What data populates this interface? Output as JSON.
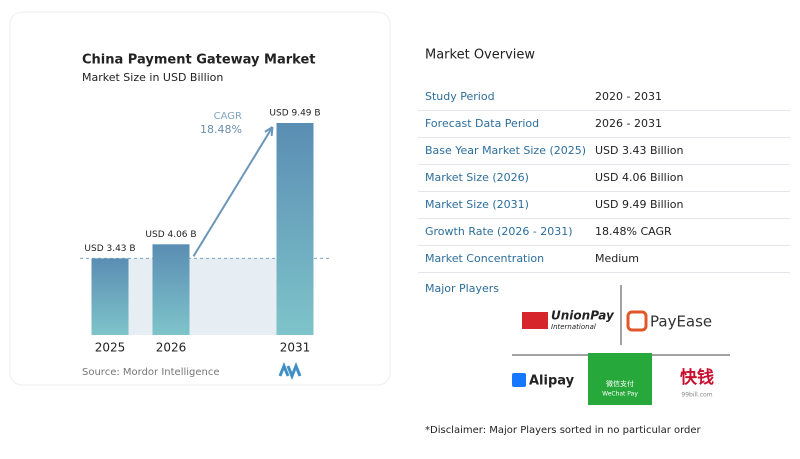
{
  "chart_data": {
    "type": "bar",
    "title": "China Payment Gateway Market",
    "subtitle": "Market Size in USD Billion",
    "categories": [
      "2025",
      "2026",
      "2031"
    ],
    "values": [
      3.43,
      4.06,
      9.49
    ],
    "value_labels": [
      "USD 3.43 B",
      "USD 4.06 B",
      "USD 9.49 B"
    ],
    "annotations": [
      "CAGR",
      "18.48%"
    ],
    "source": "Source: Mordor Intelligence"
  },
  "overview": {
    "title": "Market Overview",
    "rows": [
      [
        "Study Period",
        "2020 - 2031"
      ],
      [
        "Forecast Data Period",
        "2026 - 2031"
      ],
      [
        "Base Year Market Size (2025)",
        "USD 3.43 Billion"
      ],
      [
        "Market Size (2026)",
        "USD 4.06 Billion"
      ],
      [
        "Market Size (2031)",
        "USD 9.49 Billion"
      ],
      [
        "Growth Rate (2026 - 2031)",
        "18.48% CAGR"
      ],
      [
        "Market Concentration",
        "Medium"
      ]
    ]
  },
  "players": {
    "title": "Major Players",
    "logos": [
      [
        "UnionPay",
        "International"
      ],
      [
        "PayEase"
      ],
      [
        "Alipay"
      ],
      [
        "微信支付",
        "WeChat Pay"
      ],
      [
        "快钱",
        "99bill.com"
      ]
    ]
  },
  "disclaimer": "*Disclaimer: Major Players sorted in no particular order"
}
